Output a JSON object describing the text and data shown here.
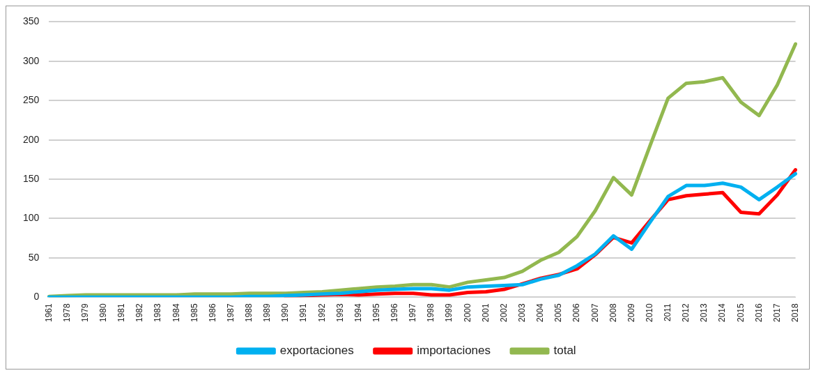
{
  "chart_data": {
    "type": "line",
    "categories": [
      "1961",
      "1978",
      "1979",
      "1980",
      "1981",
      "1982",
      "1983",
      "1984",
      "1985",
      "1986",
      "1987",
      "1988",
      "1989",
      "1990",
      "1991",
      "1992",
      "1993",
      "1994",
      "1995",
      "1996",
      "1997",
      "1998",
      "1999",
      "2000",
      "2001",
      "2002",
      "2003",
      "2004",
      "2005",
      "2006",
      "2007",
      "2008",
      "2009",
      "2010",
      "2011",
      "2012",
      "2013",
      "2014",
      "2015",
      "2016",
      "2017",
      "2018"
    ],
    "series": [
      {
        "name": "exportaciones",
        "color": "#00b0f0",
        "values": [
          0,
          0,
          0,
          0,
          0,
          0,
          0,
          0,
          0,
          0,
          0,
          1,
          1,
          2,
          3,
          4,
          5,
          7,
          9,
          10,
          11,
          11,
          9,
          13,
          14,
          15,
          16,
          23,
          28,
          40,
          55,
          78,
          61,
          95,
          128,
          142,
          142,
          145,
          140,
          124,
          140,
          157
        ]
      },
      {
        "name": "importaciones",
        "color": "#ff0000",
        "values": [
          null,
          null,
          null,
          null,
          null,
          null,
          null,
          null,
          null,
          null,
          null,
          null,
          null,
          0,
          2,
          3,
          3.5,
          3,
          4,
          5,
          5,
          3,
          3,
          6,
          7,
          10,
          17,
          24,
          29,
          36,
          54,
          76,
          69,
          97,
          124,
          129,
          131,
          133,
          108,
          106,
          130,
          162
        ]
      },
      {
        "name": "total",
        "color": "#92b84f",
        "values": [
          1,
          2,
          3,
          3,
          3,
          3,
          3,
          3,
          4,
          4,
          4,
          5,
          5,
          5,
          6,
          7,
          9,
          11,
          13,
          14,
          16,
          16,
          13,
          19,
          22,
          25,
          33,
          47,
          57,
          77,
          110,
          152,
          130,
          192,
          253,
          272,
          274,
          279,
          248,
          231,
          270,
          322
        ]
      }
    ],
    "ylim": [
      0,
      350
    ],
    "yticks": [
      0,
      50,
      100,
      150,
      200,
      250,
      300,
      350
    ],
    "grid": "y",
    "legend": "bottom",
    "line_style": "solid",
    "marker": "none"
  }
}
